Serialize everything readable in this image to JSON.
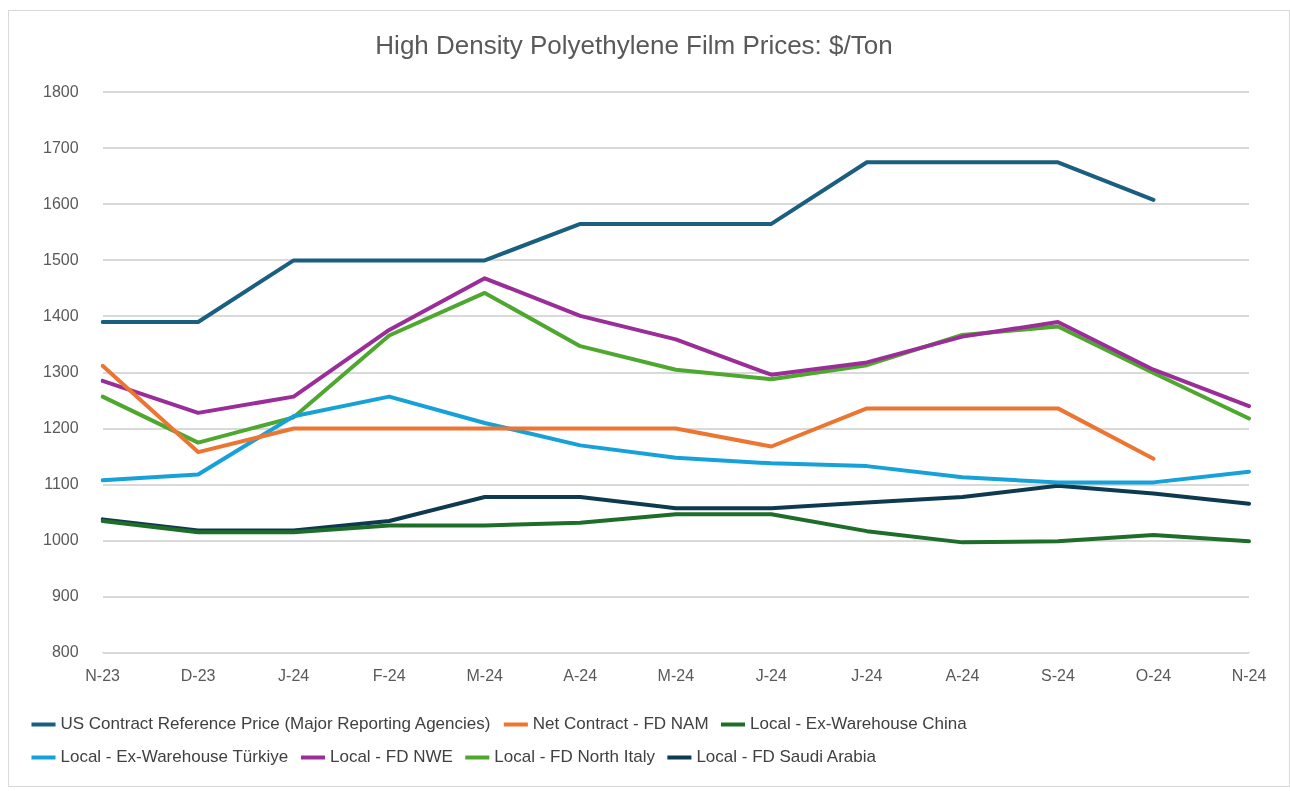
{
  "chart_data": {
    "type": "line",
    "title": "High Density Polyethylene Film Prices: $/Ton",
    "categories": [
      "N-23",
      "D-23",
      "J-24",
      "F-24",
      "M-24",
      "A-24",
      "M-24",
      "J-24",
      "J-24",
      "A-24",
      "S-24",
      "O-24",
      "N-24"
    ],
    "series": [
      {
        "name": "US Contract Reference Price (Major Reporting Agencies)",
        "color": "#1a5f7f",
        "values": [
          1390,
          1390,
          1500,
          1500,
          1500,
          1565,
          1565,
          1565,
          1675,
          1675,
          1675,
          1608,
          null
        ]
      },
      {
        "name": "Net Contract - FD NAM",
        "color": "#ed7532",
        "values": [
          1312,
          1158,
          1200,
          1200,
          1200,
          1200,
          1200,
          1168,
          1236,
          1236,
          1236,
          1146,
          null
        ]
      },
      {
        "name": "Local - Ex-Warehouse China",
        "color": "#1e6e2a",
        "values": [
          1035,
          1015,
          1015,
          1027,
          1027,
          1032,
          1047,
          1047,
          1017,
          997,
          999,
          1010,
          999
        ]
      },
      {
        "name": "Local - Ex-Warehouse Türkiye",
        "color": "#17a1d9",
        "values": [
          1108,
          1118,
          1222,
          1257,
          1210,
          1170,
          1148,
          1138,
          1133,
          1113,
          1104,
          1104,
          1123
        ]
      },
      {
        "name": "Local - FD NWE",
        "color": "#9b2d98",
        "values": [
          1285,
          1228,
          1257,
          1376,
          1468,
          1401,
          1359,
          1296,
          1318,
          1364,
          1390,
          1305,
          1240
        ]
      },
      {
        "name": "Local - FD North Italy",
        "color": "#4ea72e",
        "values": [
          1257,
          1175,
          1220,
          1366,
          1442,
          1347,
          1305,
          1288,
          1313,
          1367,
          1382,
          1299,
          1218
        ]
      },
      {
        "name": "Local - FD Saudi Arabia",
        "color": "#0e3a4f",
        "values": [
          1038,
          1018,
          1018,
          1035,
          1078,
          1078,
          1058,
          1058,
          1068,
          1078,
          1098,
          1084,
          1066
        ]
      }
    ],
    "ylim": [
      800,
      1800
    ],
    "yticks": [
      800,
      900,
      1000,
      1100,
      1200,
      1300,
      1400,
      1500,
      1600,
      1700,
      1800
    ],
    "grid": "y",
    "legend": "bottom",
    "marker": "none",
    "line_style": "solid"
  }
}
